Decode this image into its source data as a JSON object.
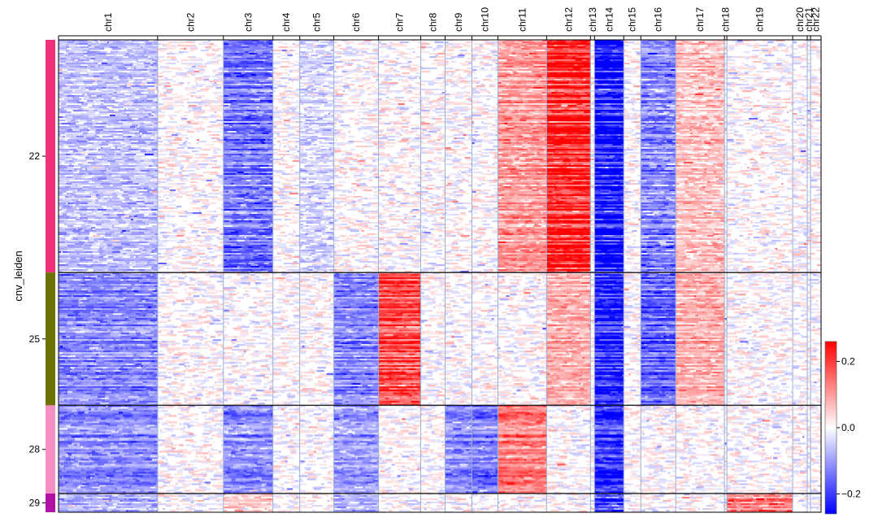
{
  "chart_data": {
    "type": "heatmap",
    "title": "",
    "ylabel": "cnv_leiden",
    "xlabel": "",
    "chromosomes": [
      {
        "name": "chr1",
        "start": 0,
        "end": 122
      },
      {
        "name": "chr2",
        "start": 122,
        "end": 203
      },
      {
        "name": "chr3",
        "start": 203,
        "end": 264
      },
      {
        "name": "chr4",
        "start": 264,
        "end": 297
      },
      {
        "name": "chr5",
        "start": 297,
        "end": 339
      },
      {
        "name": "chr6",
        "start": 339,
        "end": 394
      },
      {
        "name": "chr7",
        "start": 394,
        "end": 446
      },
      {
        "name": "chr8",
        "start": 446,
        "end": 476
      },
      {
        "name": "chr9",
        "start": 476,
        "end": 509
      },
      {
        "name": "chr10",
        "start": 509,
        "end": 541
      },
      {
        "name": "chr11",
        "start": 541,
        "end": 601
      },
      {
        "name": "chr12",
        "start": 601,
        "end": 655
      },
      {
        "name": "chr13",
        "start": 655,
        "end": 660
      },
      {
        "name": "chr14",
        "start": 660,
        "end": 696
      },
      {
        "name": "chr15",
        "start": 696,
        "end": 717
      },
      {
        "name": "chr16",
        "start": 717,
        "end": 760
      },
      {
        "name": "chr17",
        "start": 760,
        "end": 820
      },
      {
        "name": "chr18",
        "start": 820,
        "end": 823
      },
      {
        "name": "chr19",
        "start": 823,
        "end": 904
      },
      {
        "name": "chr20",
        "start": 904,
        "end": 922
      },
      {
        "name": "chr21",
        "start": 922,
        "end": 926
      },
      {
        "name": "chr22",
        "start": 926,
        "end": 939
      }
    ],
    "genome_length": 939,
    "clusters": [
      {
        "name": "22",
        "color": "#f0307a",
        "cells": 298
      },
      {
        "name": "25",
        "color": "#6e7305",
        "cells": 170
      },
      {
        "name": "28",
        "color": "#f48fc4",
        "cells": 113
      },
      {
        "name": "29",
        "color": "#b310a6",
        "cells": 24
      }
    ],
    "colorbar": {
      "vmin": -0.26,
      "vmax": 0.26,
      "ticks": [
        {
          "value": 0.2,
          "label": "0.2"
        },
        {
          "value": 0.0,
          "label": "0.0"
        },
        {
          "value": -0.2,
          "label": "−0.2"
        }
      ],
      "low_color": "#0000ff",
      "mid_color": "#ffffff",
      "high_color": "#ff0000"
    },
    "cnv_blocks": [
      {
        "cluster": "22",
        "chrom": "chr1",
        "value": -0.06
      },
      {
        "cluster": "22",
        "chrom": "chr3",
        "value": -0.14
      },
      {
        "cluster": "22",
        "chrom": "chr5",
        "value": -0.04
      },
      {
        "cluster": "22",
        "chrom": "chr11",
        "value": 0.1
      },
      {
        "cluster": "22",
        "chrom": "chr12",
        "value": 0.22
      },
      {
        "cluster": "22",
        "chrom": "chr14",
        "value": -0.24
      },
      {
        "cluster": "22",
        "chrom": "chr16",
        "value": -0.12
      },
      {
        "cluster": "22",
        "chrom": "chr17",
        "value": 0.06
      },
      {
        "cluster": "25",
        "chrom": "chr1",
        "value": -0.12
      },
      {
        "cluster": "25",
        "chrom": "chr6",
        "value": -0.12
      },
      {
        "cluster": "25",
        "chrom": "chr7",
        "value": 0.18
      },
      {
        "cluster": "25",
        "chrom": "chr12",
        "value": 0.08
      },
      {
        "cluster": "25",
        "chrom": "chr14",
        "value": -0.22
      },
      {
        "cluster": "25",
        "chrom": "chr16",
        "value": -0.16
      },
      {
        "cluster": "25",
        "chrom": "chr17",
        "value": 0.08
      },
      {
        "cluster": "28",
        "chrom": "chr1",
        "value": -0.12
      },
      {
        "cluster": "28",
        "chrom": "chr3",
        "value": -0.12
      },
      {
        "cluster": "28",
        "chrom": "chr6",
        "value": -0.1
      },
      {
        "cluster": "28",
        "chrom": "chr9",
        "value": -0.12
      },
      {
        "cluster": "28",
        "chrom": "chr10",
        "value": -0.14
      },
      {
        "cluster": "28",
        "chrom": "chr11",
        "value": 0.14
      },
      {
        "cluster": "28",
        "chrom": "chr14",
        "value": -0.22
      },
      {
        "cluster": "29",
        "chrom": "chr1",
        "value": -0.08
      },
      {
        "cluster": "29",
        "chrom": "chr3",
        "value": 0.06
      },
      {
        "cluster": "29",
        "chrom": "chr6",
        "value": -0.08
      },
      {
        "cluster": "29",
        "chrom": "chr14",
        "value": -0.2
      },
      {
        "cluster": "29",
        "chrom": "chr19",
        "value": 0.14
      }
    ]
  }
}
